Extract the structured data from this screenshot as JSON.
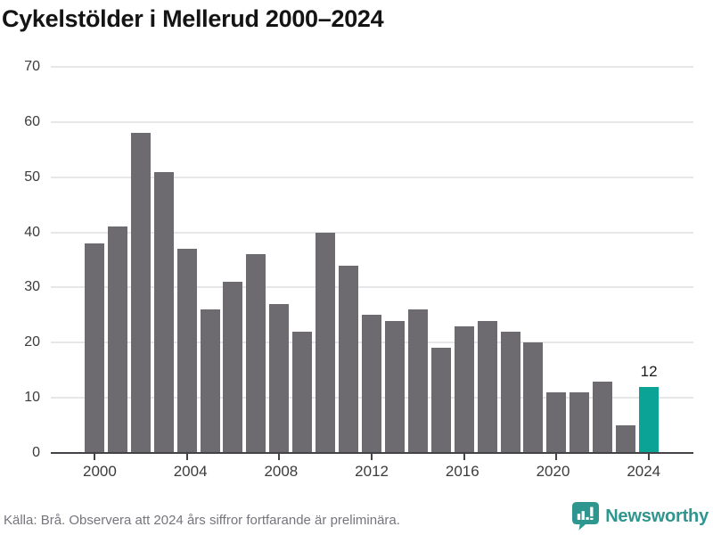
{
  "title": "Cykelstölder i Mellerud 2000–2024",
  "chart_data": {
    "type": "bar",
    "title": "Cykelstölder i Mellerud 2000–2024",
    "categories": [
      2000,
      2001,
      2002,
      2003,
      2004,
      2005,
      2006,
      2007,
      2008,
      2009,
      2010,
      2011,
      2012,
      2013,
      2014,
      2015,
      2016,
      2017,
      2018,
      2019,
      2020,
      2021,
      2022,
      2023,
      2024
    ],
    "values": [
      38,
      41,
      58,
      51,
      37,
      26,
      31,
      36,
      27,
      22,
      40,
      34,
      25,
      24,
      26,
      19,
      23,
      24,
      22,
      20,
      11,
      11,
      13,
      5,
      12
    ],
    "highlight_year": 2024,
    "annotation": {
      "year": 2024,
      "text": "12"
    },
    "xlabel": "",
    "ylabel": "",
    "ylim": [
      0,
      70
    ],
    "yticks": [
      0,
      10,
      20,
      30,
      40,
      50,
      60,
      70
    ],
    "xticks": [
      2000,
      2004,
      2008,
      2012,
      2016,
      2020,
      2024
    ],
    "grid": "horizontal",
    "legend": "none"
  },
  "colors": {
    "bar": "#6e6b70",
    "bar_highlight": "#0aa396",
    "gridline": "#e7e7e9",
    "axis": "#424247",
    "tick_label": "#3c3c3c",
    "annotation_text": "#1c1c1c",
    "brand_teal": "#2d968e"
  },
  "footer": {
    "source": "Källa: Brå. Observera att 2024 års siffror fortfarande är preliminära.",
    "brand": "Newsworthy"
  }
}
